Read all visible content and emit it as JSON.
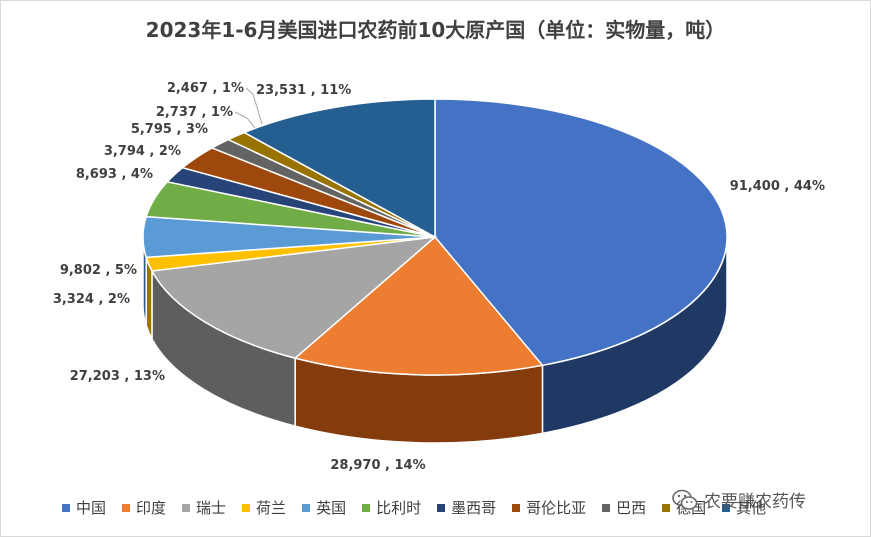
{
  "chart_data": {
    "type": "pie",
    "title": "2023年1-6月美国进口农药前10大原产国（单位：实物量，吨）",
    "legend_position": "bottom",
    "slices": [
      {
        "name": "中国",
        "value": 91400,
        "percent": "44%",
        "label": "91,400 , 44%",
        "color": "#4472c4",
        "dark": "#1f3864"
      },
      {
        "name": "印度",
        "value": 28970,
        "percent": "14%",
        "label": "28,970 , 14%",
        "color": "#ed7d31",
        "dark": "#843c0c"
      },
      {
        "name": "瑞士",
        "value": 27203,
        "percent": "13%",
        "label": "27,203 , 13%",
        "color": "#a5a5a5",
        "dark": "#5e5e5e"
      },
      {
        "name": "荷兰",
        "value": 3324,
        "percent": "2%",
        "label": "3,324 , 2%",
        "color": "#ffc000",
        "dark": "#9c7400"
      },
      {
        "name": "英国",
        "value": 9802,
        "percent": "5%",
        "label": "9,802 , 5%",
        "color": "#5b9bd5",
        "dark": "#2e5c8a"
      },
      {
        "name": "比利时",
        "value": 8693,
        "percent": "4%",
        "label": "8,693 , 4%",
        "color": "#70ad47",
        "dark": "#3a6a22"
      },
      {
        "name": "墨西哥",
        "value": 3794,
        "percent": "2%",
        "label": "3,794 , 2%",
        "color": "#264478",
        "dark": "#14243f"
      },
      {
        "name": "哥伦比亚",
        "value": 5795,
        "percent": "3%",
        "label": "5,795 , 3%",
        "color": "#9e480e",
        "dark": "#552606"
      },
      {
        "name": "巴西",
        "value": 2737,
        "percent": "1%",
        "label": "2,737 , 1%",
        "color": "#636363",
        "dark": "#333333"
      },
      {
        "name": "德国",
        "value": 2467,
        "percent": "1%",
        "label": "2,467 , 1%",
        "color": "#997300",
        "dark": "#4f3b00"
      },
      {
        "name": "其他",
        "value": 23531,
        "percent": "11%",
        "label": "23,531 , 11%",
        "color": "#255e91",
        "dark": "#133150"
      }
    ]
  },
  "watermark": {
    "text": "农要赚农药传",
    "icon": "wechat-icon"
  }
}
